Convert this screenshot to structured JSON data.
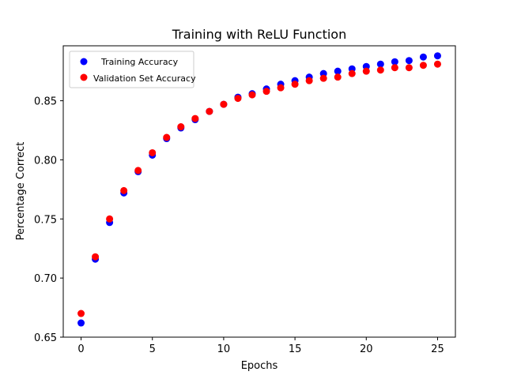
{
  "chart_data": {
    "type": "scatter",
    "title": "Training with ReLU Function",
    "xlabel": "Epochs",
    "ylabel": "Percentage Correct",
    "xlim": [
      -1.25,
      26.25
    ],
    "ylim": [
      0.65,
      0.8965
    ],
    "x_ticks": [
      0,
      5,
      10,
      15,
      20,
      25
    ],
    "x_tick_labels": [
      "0",
      "5",
      "10",
      "15",
      "20",
      "25"
    ],
    "y_ticks": [
      0.65,
      0.7,
      0.75,
      0.8,
      0.85
    ],
    "y_tick_labels": [
      "0.65",
      "0.70",
      "0.75",
      "0.80",
      "0.85"
    ],
    "grid": false,
    "legend_position": "top-left",
    "x": [
      0,
      1,
      2,
      3,
      4,
      5,
      6,
      7,
      8,
      9,
      10,
      11,
      12,
      13,
      14,
      15,
      16,
      17,
      18,
      19,
      20,
      21,
      22,
      23,
      24,
      25
    ],
    "series": [
      {
        "name": "Training Accuracy",
        "color": "#0000ff",
        "values": [
          0.662,
          0.716,
          0.747,
          0.772,
          0.79,
          0.804,
          0.818,
          0.827,
          0.834,
          0.841,
          0.847,
          0.853,
          0.856,
          0.86,
          0.864,
          0.867,
          0.87,
          0.873,
          0.875,
          0.877,
          0.879,
          0.881,
          0.883,
          0.884,
          0.887,
          0.888
        ]
      },
      {
        "name": "Validation Set Accuracy",
        "color": "#ff0000",
        "values": [
          0.67,
          0.718,
          0.75,
          0.774,
          0.791,
          0.806,
          0.819,
          0.828,
          0.835,
          0.841,
          0.847,
          0.852,
          0.855,
          0.858,
          0.861,
          0.864,
          0.867,
          0.869,
          0.87,
          0.873,
          0.875,
          0.876,
          0.878,
          0.878,
          0.88,
          0.881
        ]
      }
    ]
  }
}
